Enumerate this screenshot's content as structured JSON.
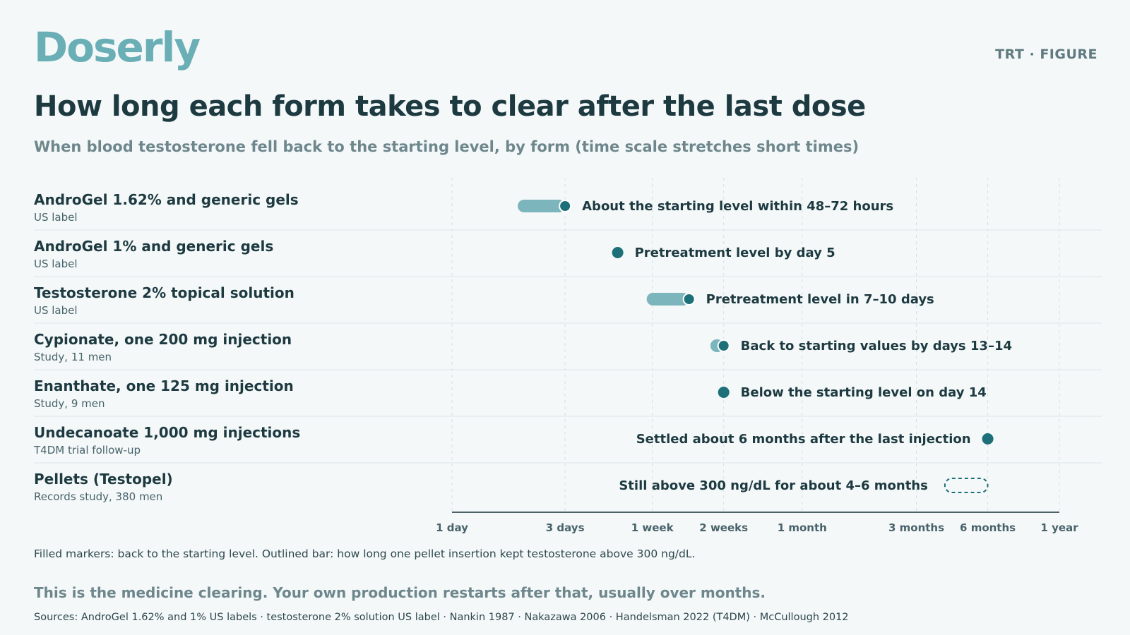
{
  "header": {
    "brand": "Doserly",
    "tag": "TRT · FIGURE"
  },
  "chart_data": {
    "type": "range",
    "title": "How long each form takes to clear after the last dose",
    "subtitle": "When blood testosterone fell back to the starting level, by form (time scale stretches short times)",
    "x_scale": "log",
    "x_unit": "days",
    "x_ticks": [
      {
        "label": "1 day",
        "days": 1
      },
      {
        "label": "3 days",
        "days": 3
      },
      {
        "label": "1 week",
        "days": 7
      },
      {
        "label": "2 weeks",
        "days": 14
      },
      {
        "label": "1 month",
        "days": 30
      },
      {
        "label": "3 months",
        "days": 91
      },
      {
        "label": "6 months",
        "days": 182
      },
      {
        "label": "1 year",
        "days": 365
      }
    ],
    "colors": {
      "marker": "#1d6f78",
      "range": "#7cb5bc",
      "grid": "#d6e0e2",
      "axis": "#4a6268"
    },
    "rows": [
      {
        "label": "AndroGel 1.62% and generic gels",
        "source": "US label",
        "kind": "range",
        "start_days": 2,
        "end_days": 3,
        "annotation": "About the starting level within 48–72 hours",
        "ann_side": "right"
      },
      {
        "label": "AndroGel 1% and generic gels",
        "source": "US label",
        "kind": "point",
        "days": 5,
        "annotation": "Pretreatment level by day 5",
        "ann_side": "right"
      },
      {
        "label": "Testosterone 2% topical solution",
        "source": "US label",
        "kind": "range",
        "start_days": 7,
        "end_days": 10,
        "annotation": "Pretreatment level in 7–10 days",
        "ann_side": "right"
      },
      {
        "label": "Cypionate, one 200 mg injection",
        "source": "Study, 11 men",
        "kind": "range",
        "start_days": 13,
        "end_days": 14,
        "annotation": "Back to starting values by days 13–14",
        "ann_side": "right"
      },
      {
        "label": "Enanthate, one 125 mg injection",
        "source": "Study, 9 men",
        "kind": "point",
        "days": 14,
        "annotation": "Below the starting level on day 14",
        "ann_side": "right"
      },
      {
        "label": "Undecanoate 1,000 mg injections",
        "source": "T4DM trial follow-up",
        "kind": "point",
        "days": 182,
        "annotation": "Settled about 6 months after the last injection",
        "ann_side": "left"
      },
      {
        "label": "Pellets (Testopel)",
        "source": "Records study, 380 men",
        "kind": "outline",
        "start_days": 120,
        "end_days": 182,
        "annotation": "Still above 300 ng/dL for about 4–6 months",
        "ann_side": "left"
      }
    ]
  },
  "footer": {
    "legend": "Filled markers: back to the starting level. Outlined bar: how long one pellet insertion kept testosterone above 300 ng/dL.",
    "note": "This is the medicine clearing. Your own production restarts after that, usually over months.",
    "sources": "Sources: AndroGel 1.62% and 1% US labels · testosterone 2% solution US label · Nankin 1987 · Nakazawa 2006 · Handelsman 2022 (T4DM) · McCullough 2012"
  }
}
